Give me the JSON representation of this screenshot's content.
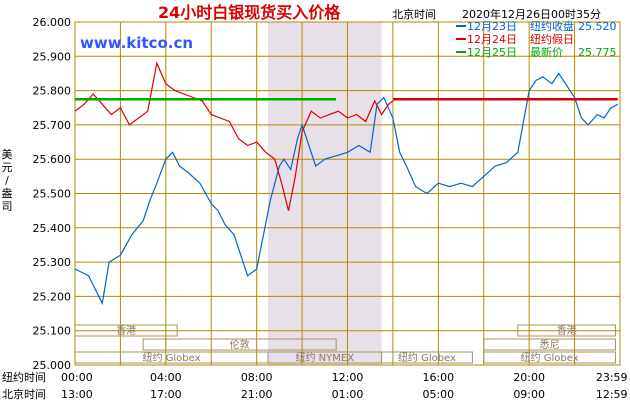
{
  "chart_data": {
    "type": "line",
    "title": "24小时白银现货买入价格",
    "site": "www.kitco.cn",
    "clock_label": "北京时间",
    "timestamp": "2020年12月26日00时35分",
    "ylabel": "美元/盎司",
    "ylim": [
      25.0,
      26.0
    ],
    "yticks": [
      "26.000",
      "25.900",
      "25.800",
      "25.700",
      "25.600",
      "25.500",
      "25.400",
      "25.300",
      "25.200",
      "25.100",
      "25.000"
    ],
    "xlim": [
      0,
      24
    ],
    "row_label_ny": "纽约时间",
    "row_label_bj": "北京时间",
    "ny_ticks": [
      "00:00",
      "04:00",
      "08:00",
      "12:00",
      "16:00",
      "20:00",
      "23:59"
    ],
    "bj_ticks": [
      "13:00",
      "17:00",
      "21:00",
      "01:00",
      "05:00",
      "09:00",
      "12:59"
    ],
    "shade_range": [
      8.5,
      13.5
    ],
    "legend": [
      {
        "color": "#0066cc",
        "label": "12月23日",
        "desc": "纽约收盘",
        "value": "25.520"
      },
      {
        "color": "#dd0000",
        "label": "12月24日",
        "desc": "纽约假日",
        "value": ""
      },
      {
        "color": "#00aa00",
        "label": "12月25日",
        "desc": "最新价",
        "value": "25.775"
      }
    ],
    "sessions": [
      {
        "label": "香港",
        "row": 1,
        "start": 0,
        "end": 4.5
      },
      {
        "label": "香港",
        "row": 1,
        "start": 19.5,
        "end": 23.8
      },
      {
        "label": "伦敦",
        "row": 2,
        "start": 3,
        "end": 11.5
      },
      {
        "label": "悉尼",
        "row": 2,
        "start": 18,
        "end": 23.8
      },
      {
        "label": "纽约 Globex",
        "row": 3,
        "start": 0,
        "end": 8.5
      },
      {
        "label": "纽约 NYMEX",
        "row": 3,
        "start": 8.5,
        "end": 13.5
      },
      {
        "label": "纽约 Globex",
        "row": 3,
        "start": 13.5,
        "end": 17.5
      },
      {
        "label": "纽约 Globex",
        "row": 3,
        "start": 18,
        "end": 23.8
      }
    ],
    "series": [
      {
        "name": "12月23日",
        "color": "#0066cc",
        "x": [
          0,
          0.3,
          0.6,
          0.9,
          1.2,
          1.5,
          2.0,
          2.5,
          3.0,
          3.3,
          3.6,
          4.0,
          4.3,
          4.6,
          5.0,
          5.5,
          6.0,
          6.3,
          6.6,
          7.0,
          7.3,
          7.6,
          8.0,
          8.3,
          8.6,
          9.0,
          9.2,
          9.5,
          9.8,
          10.0,
          10.3,
          10.6,
          11.0,
          11.5,
          12.0,
          12.5,
          13.0,
          13.3,
          13.6,
          14.0,
          14.3,
          14.6,
          15.0,
          15.5,
          16.0,
          16.5,
          17.0,
          17.5,
          18.0,
          18.5,
          19.0,
          19.5,
          20.0,
          20.3,
          20.6,
          21.0,
          21.3,
          21.6,
          22.0,
          22.3,
          22.6,
          23.0,
          23.3,
          23.6,
          23.9
        ],
        "y": [
          25.28,
          25.27,
          25.26,
          25.22,
          25.18,
          25.3,
          25.32,
          25.38,
          25.42,
          25.48,
          25.53,
          25.6,
          25.62,
          25.58,
          25.56,
          25.53,
          25.47,
          25.45,
          25.41,
          25.38,
          25.32,
          25.26,
          25.28,
          25.38,
          25.48,
          25.58,
          25.6,
          25.57,
          25.66,
          25.7,
          25.64,
          25.58,
          25.6,
          25.61,
          25.62,
          25.64,
          25.62,
          25.76,
          25.78,
          25.72,
          25.62,
          25.58,
          25.52,
          25.5,
          25.53,
          25.52,
          25.53,
          25.52,
          25.55,
          25.58,
          25.59,
          25.62,
          25.8,
          25.83,
          25.84,
          25.82,
          25.85,
          25.82,
          25.78,
          25.72,
          25.7,
          25.73,
          25.72,
          25.75,
          25.76
        ]
      },
      {
        "name": "12月24日",
        "color": "#dd0000",
        "x": [
          0,
          0.4,
          0.8,
          1.2,
          1.6,
          2.0,
          2.4,
          2.8,
          3.2,
          3.6,
          4.0,
          4.4,
          4.8,
          5.2,
          5.6,
          6.0,
          6.4,
          6.8,
          7.2,
          7.6,
          8.0,
          8.4,
          8.8,
          9.1,
          9.4,
          9.7,
          10.0,
          10.4,
          10.8,
          11.2,
          11.6,
          12.0,
          12.4,
          12.8,
          13.2,
          13.5,
          13.8,
          14.0
        ],
        "y": [
          25.74,
          25.76,
          25.79,
          25.76,
          25.73,
          25.75,
          25.7,
          25.72,
          25.74,
          25.88,
          25.82,
          25.8,
          25.79,
          25.78,
          25.77,
          25.73,
          25.72,
          25.71,
          25.66,
          25.64,
          25.65,
          25.62,
          25.6,
          25.53,
          25.45,
          25.55,
          25.68,
          25.74,
          25.72,
          25.73,
          25.74,
          25.72,
          25.73,
          25.71,
          25.77,
          25.73,
          25.76,
          25.77
        ]
      },
      {
        "name": "12月25日",
        "color": "#00aa00",
        "x": [
          0,
          11.5
        ],
        "y": [
          25.775,
          25.775
        ]
      },
      {
        "name": "12月24日-level",
        "color": "#dd0000",
        "x": [
          14.0,
          23.9
        ],
        "y": [
          25.775,
          25.775
        ]
      }
    ]
  }
}
